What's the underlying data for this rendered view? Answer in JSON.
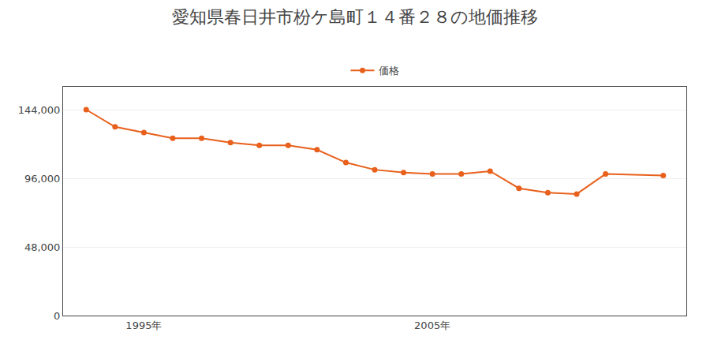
{
  "chart_data": {
    "type": "line",
    "title": "愛知県春日井市枌ケ島町１４番２８の地価推移",
    "x": [
      1993,
      1994,
      1995,
      1996,
      1997,
      1998,
      1999,
      2000,
      2001,
      2002,
      2003,
      2004,
      2005,
      2006,
      2007,
      2008,
      2009,
      2010,
      2011,
      2013
    ],
    "series": [
      {
        "name": "価格",
        "color": "#e8601c",
        "marker": "circle",
        "line_style": "solid",
        "values": [
          144000,
          132000,
          128000,
          124000,
          124000,
          121000,
          119000,
          119000,
          116000,
          107000,
          102000,
          100000,
          99000,
          99000,
          101000,
          89000,
          86000,
          85000,
          99000,
          98000
        ]
      }
    ],
    "xlim": [
      1992.2,
      2013.8
    ],
    "xticks": [
      {
        "value": 1995,
        "label": "1995年"
      },
      {
        "value": 2005,
        "label": "2005年"
      }
    ],
    "ylim": [
      0,
      160000
    ],
    "yticks": [
      0,
      {
        "value": 48000,
        "label": "48,000"
      },
      {
        "value": 96000,
        "label": "96,000"
      },
      {
        "value": 144000,
        "label": "144,000"
      }
    ],
    "grid": true,
    "legend": "top"
  }
}
